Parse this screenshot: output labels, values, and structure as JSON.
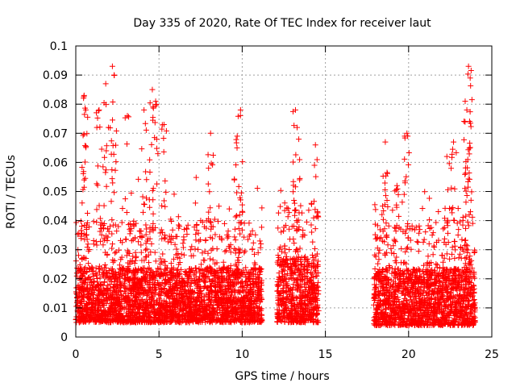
{
  "chart_data": {
    "type": "scatter",
    "title": "Day 335 of 2020, Rate Of TEC Index for receiver laut",
    "xlabel": "GPS time / hours",
    "ylabel": "ROTI / TECUs",
    "xlim": [
      0,
      25
    ],
    "ylim": [
      0,
      0.1
    ],
    "x_ticks": [
      "0",
      "5",
      "10",
      "15",
      "20",
      "25"
    ],
    "y_ticks": [
      "0",
      "0.01",
      "0.02",
      "0.03",
      "0.04",
      "0.05",
      "0.06",
      "0.07",
      "0.08",
      "0.09",
      "0.1"
    ],
    "grid": true,
    "marker": "+",
    "series": [
      {
        "color": "#ff0000",
        "segments": [
          {
            "x_range": [
              0.0,
              11.2
            ],
            "baseline": [
              0.005,
              0.03
            ]
          },
          {
            "x_range": [
              12.1,
              14.6
            ],
            "baseline": [
              0.005,
              0.035
            ]
          },
          {
            "x_range": [
              17.9,
              24.0
            ],
            "baseline": [
              0.004,
              0.03
            ]
          }
        ],
        "peaks": [
          {
            "x": 0.5,
            "y": 0.083
          },
          {
            "x": 0.6,
            "y": 0.078
          },
          {
            "x": 1.4,
            "y": 0.078
          },
          {
            "x": 1.8,
            "y": 0.087
          },
          {
            "x": 2.2,
            "y": 0.093
          },
          {
            "x": 2.3,
            "y": 0.09
          },
          {
            "x": 3.1,
            "y": 0.076
          },
          {
            "x": 4.1,
            "y": 0.078
          },
          {
            "x": 4.6,
            "y": 0.085
          },
          {
            "x": 4.8,
            "y": 0.081
          },
          {
            "x": 5.3,
            "y": 0.073
          },
          {
            "x": 8.1,
            "y": 0.07
          },
          {
            "x": 9.7,
            "y": 0.069
          },
          {
            "x": 9.9,
            "y": 0.078
          },
          {
            "x": 13.2,
            "y": 0.078
          },
          {
            "x": 13.3,
            "y": 0.072
          },
          {
            "x": 14.4,
            "y": 0.066
          },
          {
            "x": 18.6,
            "y": 0.067
          },
          {
            "x": 19.3,
            "y": 0.052
          },
          {
            "x": 19.9,
            "y": 0.07
          },
          {
            "x": 22.3,
            "y": 0.062
          },
          {
            "x": 22.7,
            "y": 0.067
          },
          {
            "x": 23.4,
            "y": 0.081
          },
          {
            "x": 23.6,
            "y": 0.093
          },
          {
            "x": 23.7,
            "y": 0.089
          },
          {
            "x": 23.5,
            "y": 0.078
          }
        ]
      }
    ]
  }
}
